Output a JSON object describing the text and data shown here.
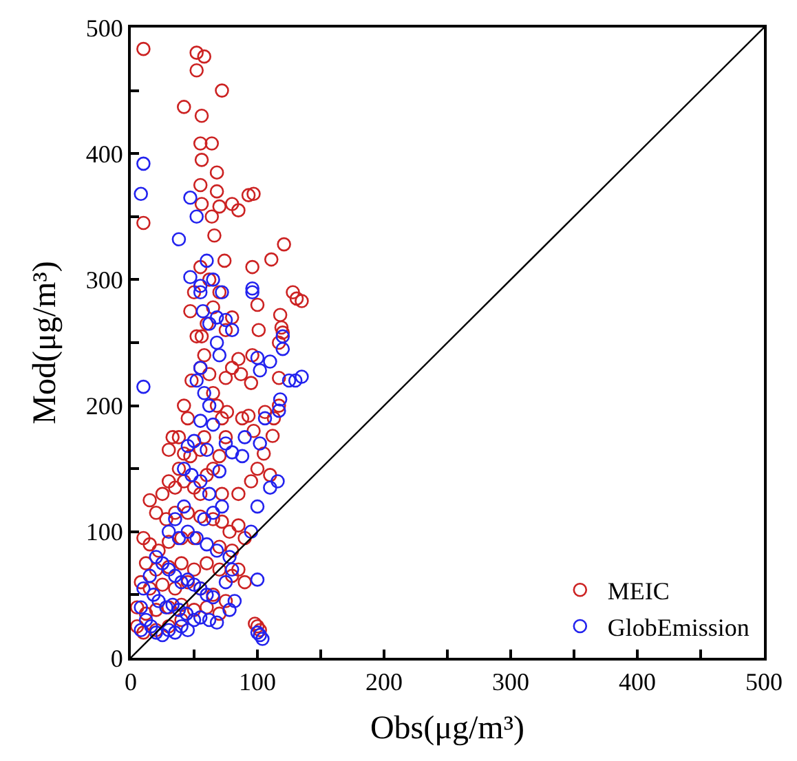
{
  "chart_data": {
    "type": "scatter",
    "xlabel": "Obs(μg/m³)",
    "ylabel": "Mod(μg/m³)",
    "xlim": [
      0,
      500
    ],
    "ylim": [
      0,
      500
    ],
    "xticks": [
      0,
      {
        "value": 50,
        "label": null
      },
      100,
      {
        "value": 150,
        "label": null
      },
      200,
      {
        "value": 250,
        "label": null
      },
      300,
      {
        "value": 350,
        "label": null
      },
      400,
      {
        "value": 450,
        "label": null
      },
      500
    ],
    "yticks": [
      0,
      {
        "value": 50,
        "label": null
      },
      100,
      {
        "value": 150,
        "label": null
      },
      200,
      {
        "value": 250,
        "label": null
      },
      300,
      {
        "value": 350,
        "label": null
      },
      400,
      {
        "value": 450,
        "label": null
      },
      500
    ],
    "legend": "bottom right",
    "marker": "circle",
    "series": [
      {
        "name": "MEIC",
        "color": "#cc2222",
        "x": [
          10,
          52,
          58,
          52,
          42,
          72,
          56,
          64,
          55,
          56,
          68,
          55,
          68,
          56,
          70,
          80,
          85,
          97,
          93,
          10,
          64,
          121,
          111,
          96,
          128,
          131,
          135,
          118,
          100,
          119,
          120,
          117,
          101,
          96,
          95,
          117,
          117,
          112,
          113,
          106,
          93,
          97,
          105,
          88,
          85,
          80,
          87,
          75,
          76,
          75,
          72,
          68,
          65,
          62,
          58,
          60,
          65,
          70,
          62,
          55,
          50,
          47,
          52,
          55,
          48,
          42,
          45,
          38,
          33,
          30,
          42,
          47,
          55,
          58,
          38,
          30,
          25,
          35,
          42,
          50,
          55,
          60,
          65,
          70,
          15,
          20,
          28,
          35,
          45,
          55,
          65,
          72,
          78,
          85,
          90,
          10,
          15,
          22,
          30,
          40,
          50,
          60,
          70,
          80,
          12,
          20,
          30,
          40,
          50,
          60,
          70,
          80,
          8,
          15,
          25,
          35,
          45,
          55,
          65,
          75,
          5,
          12,
          20,
          30,
          40,
          50,
          60,
          70,
          5,
          10,
          20,
          30,
          40,
          100,
          102,
          98,
          85,
          90,
          72,
          85,
          95,
          100,
          110,
          75,
          80,
          56,
          66,
          74
        ],
        "values": [
          483,
          480,
          477,
          466,
          437,
          450,
          430,
          408,
          408,
          395,
          385,
          375,
          370,
          360,
          358,
          360,
          355,
          368,
          367,
          345,
          350,
          328,
          316,
          310,
          290,
          285,
          283,
          272,
          280,
          262,
          258,
          250,
          260,
          240,
          218,
          222,
          200,
          176,
          190,
          195,
          192,
          180,
          162,
          190,
          237,
          230,
          225,
          222,
          195,
          175,
          190,
          200,
          210,
          225,
          240,
          265,
          278,
          290,
          300,
          310,
          290,
          275,
          255,
          230,
          220,
          200,
          190,
          175,
          175,
          165,
          162,
          160,
          165,
          175,
          150,
          140,
          130,
          135,
          140,
          135,
          130,
          145,
          150,
          160,
          125,
          115,
          110,
          115,
          115,
          112,
          110,
          108,
          100,
          105,
          95,
          95,
          90,
          85,
          92,
          95,
          95,
          null,
          88,
          85,
          75,
          70,
          72,
          75,
          70,
          75,
          70,
          65,
          60,
          55,
          58,
          55,
          60,
          55,
          50,
          45,
          40,
          35,
          38,
          40,
          42,
          38,
          40,
          35,
          25,
          20,
          22,
          25,
          30,
          25,
          22,
          27,
          70,
          60,
          130,
          130,
          140,
          150,
          145,
          260,
          270,
          255,
          335,
          315
        ]
      },
      {
        "name": "GlobEmission",
        "color": "#2222ee",
        "x": [
          10,
          8,
          47,
          52,
          10,
          38,
          60,
          47,
          55,
          55,
          65,
          72,
          68,
          75,
          80,
          96,
          96,
          57,
          62,
          100,
          102,
          120,
          120,
          110,
          130,
          135,
          125,
          118,
          117,
          106,
          102,
          90,
          88,
          75,
          80,
          55,
          52,
          58,
          62,
          55,
          65,
          50,
          60,
          45,
          42,
          48,
          55,
          62,
          70,
          72,
          65,
          58,
          42,
          35,
          30,
          38,
          45,
          52,
          60,
          68,
          78,
          75,
          80,
          82,
          78,
          20,
          25,
          30,
          35,
          40,
          45,
          50,
          55,
          60,
          65,
          15,
          10,
          18,
          22,
          28,
          33,
          38,
          44,
          50,
          55,
          62,
          68,
          8,
          12,
          16,
          20,
          25,
          30,
          35,
          40,
          45,
          8,
          100,
          102,
          104,
          100,
          95,
          110,
          116,
          100,
          70,
          68
        ],
        "values": [
          392,
          368,
          365,
          350,
          215,
          332,
          315,
          302,
          290,
          295,
          300,
          290,
          270,
          268,
          260,
          290,
          293,
          275,
          265,
          238,
          228,
          245,
          255,
          235,
          220,
          223,
          220,
          205,
          196,
          190,
          170,
          175,
          160,
          170,
          163,
          230,
          220,
          210,
          200,
          188,
          185,
          172,
          165,
          168,
          150,
          145,
          140,
          130,
          148,
          120,
          115,
          110,
          120,
          110,
          100,
          95,
          100,
          95,
          90,
          85,
          80,
          60,
          70,
          45,
          38,
          80,
          75,
          70,
          65,
          60,
          62,
          58,
          55,
          50,
          48,
          65,
          55,
          50,
          45,
          40,
          42,
          38,
          35,
          30,
          32,
          30,
          28,
          40,
          30,
          25,
          20,
          18,
          22,
          20,
          25,
          22,
          22,
          62,
          18,
          15,
          20,
          100,
          135,
          140,
          120,
          240,
          250
        ]
      },
      {
        "type": "line",
        "color": "#000000",
        "x": [
          0,
          500
        ],
        "values": [
          0,
          500
        ],
        "marker": "none"
      }
    ]
  }
}
